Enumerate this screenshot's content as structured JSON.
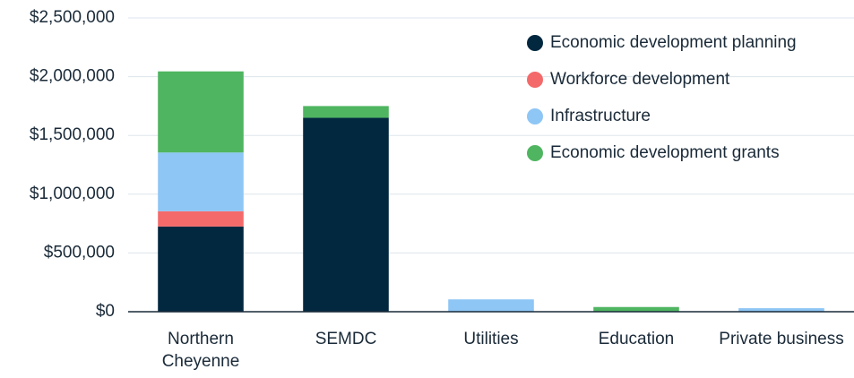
{
  "chart_data": {
    "type": "stacked_bar",
    "categories": [
      "Northern Cheyenne",
      "SEMDC",
      "Utilities",
      "Education",
      "Private business"
    ],
    "series": [
      {
        "name": "Economic development planning",
        "color": "#022840",
        "values": [
          725000,
          1650000,
          null,
          null,
          null
        ]
      },
      {
        "name": "Workforce development",
        "color": "#f46a6a",
        "values": [
          130000,
          null,
          null,
          null,
          null
        ]
      },
      {
        "name": "Infrastructure",
        "color": "#8ec6f5",
        "values": [
          500000,
          null,
          105000,
          null,
          30000
        ]
      },
      {
        "name": "Economic development grants",
        "color": "#4fb560",
        "values": [
          690000,
          100000,
          null,
          40000,
          null
        ]
      }
    ],
    "ylim": [
      0,
      2500000
    ],
    "yticks": [
      {
        "value": 0,
        "label": "$0"
      },
      {
        "value": 500000,
        "label": "$500,000"
      },
      {
        "value": 1000000,
        "label": "$1,000,000"
      },
      {
        "value": 1500000,
        "label": "$1,500,000"
      },
      {
        "value": 2000000,
        "label": "$2,000,000"
      },
      {
        "value": 2500000,
        "label": "$2,500,000"
      }
    ],
    "grid": true,
    "legend": "top-right"
  }
}
